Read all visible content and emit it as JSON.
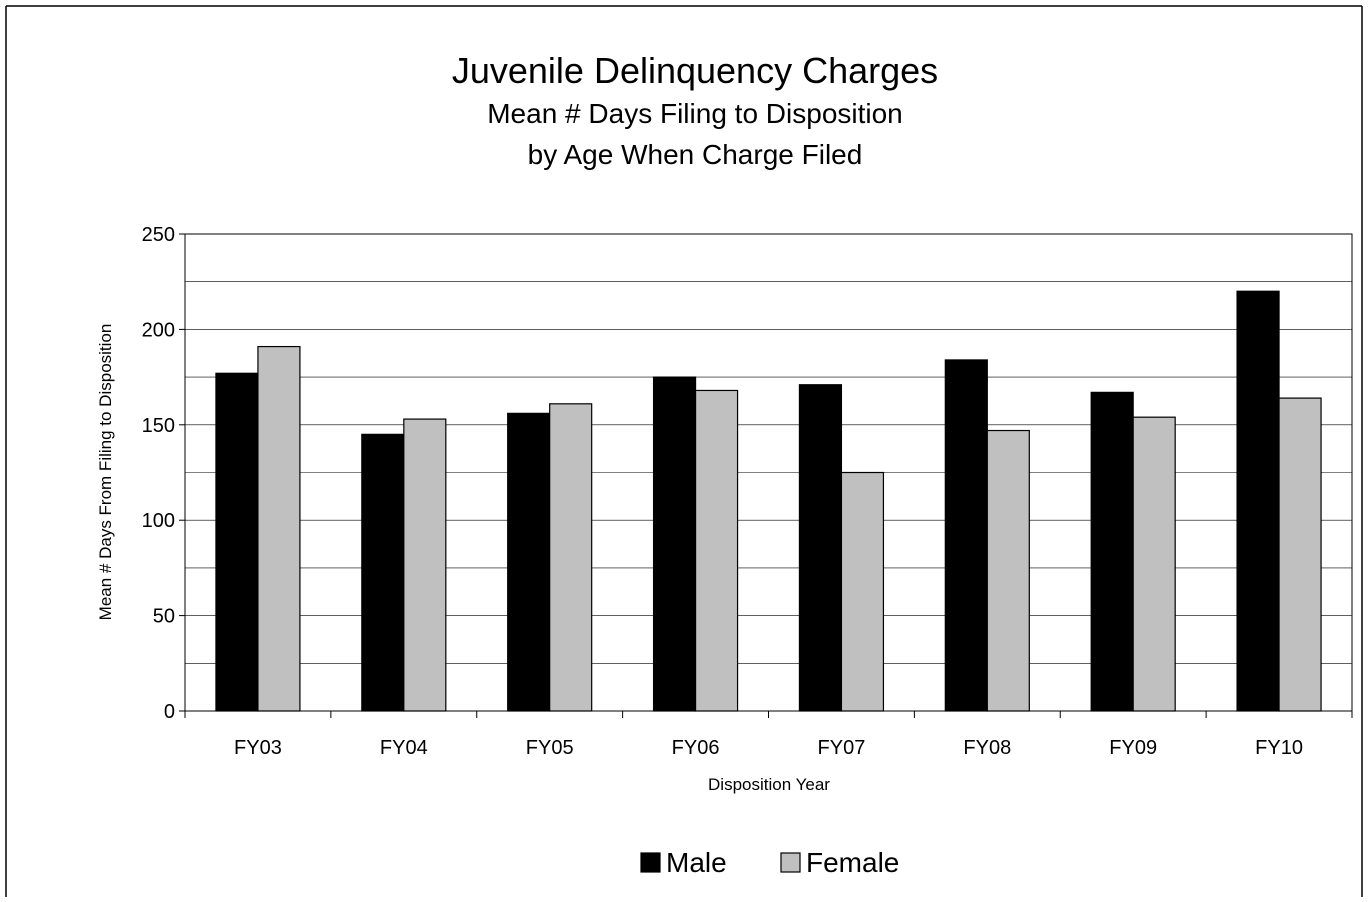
{
  "chart_data": {
    "type": "bar",
    "title": "Juvenile Delinquency Charges",
    "subtitle_lines": [
      "Mean # Days Filing to Disposition",
      "by Age When Charge Filed"
    ],
    "xlabel": "Disposition Year",
    "ylabel": "Mean # Days From Filing to Disposition",
    "ylim": [
      0,
      250
    ],
    "yticks": [
      "0",
      "50",
      "100",
      "150",
      "200",
      "250"
    ],
    "categories": [
      "FY03",
      "FY04",
      "FY05",
      "FY06",
      "FY07",
      "FY08",
      "FY09",
      "FY10"
    ],
    "series": [
      {
        "name": "Male",
        "color": "#000000",
        "values": [
          177,
          145,
          156,
          175,
          171,
          184,
          167,
          220
        ]
      },
      {
        "name": "Female",
        "color": "#c0c0c0",
        "values": [
          191,
          153,
          161,
          168,
          125,
          147,
          154,
          164
        ]
      }
    ],
    "grid": true,
    "legend": "bottom-center"
  }
}
